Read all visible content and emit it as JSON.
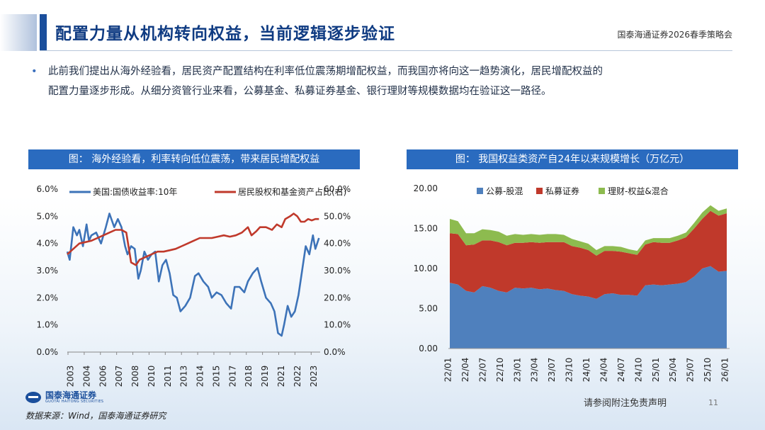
{
  "header": {
    "title": "配置力量从机构转向权益，当前逻辑逐步验证",
    "right_text": "国泰海通证券2026春季策略会"
  },
  "bullet": {
    "symbol": "•",
    "line1": "此前我们提出从海外经验看，居民资产配置结构在利率低位震荡期增配权益，而我国亦将向这一趋势演化，居民增配权益的",
    "line2": "配置力量逐步形成。从细分资管行业来看，公募基金、私募证券基金、银行理财等规模数据均在验证这一路径。"
  },
  "footer": {
    "logo_text": "国泰海通证券",
    "logo_sub": "GUOTAI HAITONG SECURITIES",
    "source": "数据来源：Wind，国泰海通证券研究",
    "disclaimer": "请参阅附注免责声明",
    "page_number": "11"
  },
  "colors": {
    "brand": "#1b4f9c",
    "header_bar": "#2a6bbf",
    "blue_series": "#3d73b8",
    "red_series": "#c0392b",
    "green_series": "#8dbb4f"
  },
  "chart_data": [
    {
      "type": "line",
      "title": "图：  海外经验看，利率转向低位震荡，带来居民增配权益",
      "x_ticks": [
        "2003",
        "2004",
        "2006",
        "2007",
        "2008",
        "2010",
        "2011",
        "2013",
        "2014",
        "2015",
        "2017",
        "2018",
        "2019",
        "2021",
        "2022",
        "2023"
      ],
      "xlim": [
        2003.0,
        2024.0
      ],
      "y_left": {
        "ticks": [
          "0.0%",
          "1.0%",
          "2.0%",
          "3.0%",
          "4.0%",
          "5.0%",
          "6.0%"
        ],
        "ylim": [
          0,
          6
        ]
      },
      "y_right": {
        "ticks": [
          "0.0%",
          "10.0%",
          "20.0%",
          "30.0%",
          "40.0%",
          "50.0%",
          "60.0%"
        ],
        "ylim": [
          0,
          60
        ]
      },
      "legend_position": "top",
      "series": [
        {
          "name": "美国:国债收益率:10年",
          "axis": "left",
          "color": "#3d73b8",
          "x": [
            2003.0,
            2003.2,
            2003.5,
            2003.8,
            2004.0,
            2004.3,
            2004.6,
            2004.8,
            2005.0,
            2005.4,
            2005.8,
            2006.2,
            2006.5,
            2006.9,
            2007.2,
            2007.5,
            2007.8,
            2008.0,
            2008.3,
            2008.6,
            2008.9,
            2009.1,
            2009.4,
            2009.7,
            2010.0,
            2010.3,
            2010.6,
            2010.9,
            2011.2,
            2011.5,
            2011.8,
            2012.1,
            2012.4,
            2012.8,
            2013.2,
            2013.6,
            2013.9,
            2014.3,
            2014.7,
            2015.0,
            2015.4,
            2015.8,
            2016.2,
            2016.6,
            2016.9,
            2017.3,
            2017.7,
            2018.0,
            2018.4,
            2018.8,
            2019.1,
            2019.5,
            2019.9,
            2020.2,
            2020.5,
            2020.8,
            2021.0,
            2021.3,
            2021.6,
            2021.9,
            2022.2,
            2022.5,
            2022.8,
            2023.1,
            2023.4,
            2023.6,
            2023.9
          ],
          "values": [
            3.7,
            3.4,
            4.6,
            4.3,
            4.5,
            3.9,
            4.7,
            4.1,
            4.3,
            4.4,
            4.0,
            4.6,
            5.1,
            4.6,
            4.9,
            4.6,
            3.9,
            3.6,
            3.9,
            3.8,
            2.7,
            3.0,
            3.7,
            3.4,
            3.6,
            3.7,
            2.6,
            3.2,
            3.4,
            2.9,
            2.1,
            2.0,
            1.5,
            1.7,
            2.0,
            2.8,
            2.9,
            2.6,
            2.4,
            2.0,
            2.2,
            2.1,
            1.8,
            1.6,
            2.4,
            2.4,
            2.2,
            2.6,
            2.9,
            3.1,
            2.6,
            2.0,
            1.8,
            1.5,
            0.7,
            0.6,
            1.0,
            1.7,
            1.3,
            1.5,
            2.1,
            3.0,
            3.9,
            3.6,
            4.3,
            3.8,
            4.2
          ]
        },
        {
          "name": "居民股权和基金资产占比(右)",
          "axis": "right",
          "color": "#c0392b",
          "x": [
            2003.0,
            2003.5,
            2004.0,
            2004.5,
            2005.0,
            2005.5,
            2006.0,
            2006.5,
            2007.0,
            2007.5,
            2007.9,
            2008.3,
            2008.7,
            2009.0,
            2009.5,
            2010.0,
            2010.5,
            2011.0,
            2011.5,
            2012.0,
            2012.5,
            2013.0,
            2013.5,
            2014.0,
            2014.5,
            2015.0,
            2015.5,
            2016.0,
            2016.5,
            2017.0,
            2017.5,
            2018.0,
            2018.3,
            2018.7,
            2019.0,
            2019.5,
            2020.0,
            2020.4,
            2020.8,
            2021.1,
            2021.5,
            2021.8,
            2022.1,
            2022.4,
            2022.7,
            2023.0,
            2023.3,
            2023.6,
            2023.9
          ],
          "values": [
            36.0,
            38.0,
            40.0,
            40.5,
            41.0,
            42.0,
            43.0,
            44.0,
            45.0,
            45.0,
            44.0,
            33.0,
            32.0,
            34.0,
            35.0,
            36.0,
            37.0,
            37.0,
            37.5,
            38.0,
            39.0,
            40.0,
            41.0,
            42.0,
            42.0,
            42.0,
            42.5,
            43.0,
            42.5,
            43.0,
            44.0,
            46.0,
            43.0,
            44.5,
            46.0,
            46.0,
            45.0,
            47.0,
            46.0,
            49.0,
            50.0,
            51.0,
            50.0,
            48.0,
            48.0,
            49.0,
            48.5,
            49.0,
            49.0
          ]
        }
      ]
    },
    {
      "type": "area",
      "title": "图：  我国权益类资产自24年以来规模增长（万亿元）",
      "stacked": true,
      "x_ticks": [
        "22/01",
        "22/04",
        "22/07",
        "22/10",
        "23/01",
        "23/04",
        "23/07",
        "23/10",
        "24/01",
        "24/04",
        "24/07",
        "24/10",
        "25/01",
        "25/04",
        "25/07",
        "25/10",
        "26/01"
      ],
      "y_ticks": [
        "0.00",
        "5.00",
        "10.00",
        "15.00",
        "20.00"
      ],
      "ylim": [
        0,
        20
      ],
      "legend_position": "top",
      "series": [
        {
          "name": "公募-股混",
          "color": "#4f80bd",
          "values": [
            8.2,
            8.0,
            7.2,
            7.0,
            7.8,
            7.6,
            7.2,
            7.0,
            7.6,
            7.5,
            7.6,
            7.4,
            7.5,
            7.3,
            7.2,
            6.8,
            6.6,
            6.5,
            6.2,
            6.8,
            6.9,
            6.7,
            6.7,
            6.6,
            7.9,
            8.0,
            7.9,
            8.0,
            8.1,
            8.3,
            9.0,
            10.0,
            10.3,
            9.6,
            9.7
          ]
        },
        {
          "name": "私募证券",
          "color": "#c0392b",
          "values": [
            6.2,
            6.3,
            5.7,
            6.0,
            5.7,
            5.9,
            6.1,
            5.9,
            5.6,
            5.7,
            5.7,
            5.8,
            5.8,
            6.0,
            6.1,
            6.0,
            6.0,
            5.8,
            5.4,
            5.4,
            5.3,
            5.4,
            5.2,
            5.1,
            5.1,
            5.3,
            5.3,
            5.2,
            5.4,
            5.6,
            6.0,
            6.2,
            6.9,
            7.0,
            7.2
          ]
        },
        {
          "name": "理财-权益&混合",
          "color": "#8dbb4f",
          "values": [
            1.8,
            1.6,
            1.5,
            1.4,
            1.4,
            1.3,
            1.3,
            1.2,
            1.1,
            1.0,
            1.0,
            1.0,
            1.0,
            1.0,
            0.9,
            0.9,
            0.8,
            0.8,
            0.7,
            0.6,
            0.6,
            0.6,
            0.5,
            0.5,
            0.5,
            0.5,
            0.6,
            0.6,
            0.6,
            0.6,
            0.7,
            0.8,
            0.7,
            0.6,
            0.6
          ]
        }
      ]
    }
  ]
}
